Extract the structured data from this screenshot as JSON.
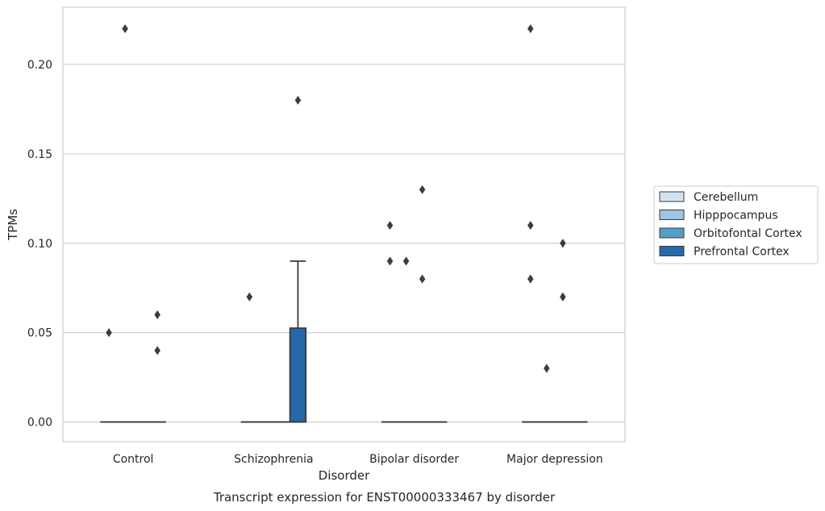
{
  "chart_data": {
    "type": "box",
    "xlabel": "Disorder",
    "ylabel": "TPMs",
    "caption": "Transcript expression for ENST00000333467 by disorder",
    "categories": [
      "Control",
      "Schizophrenia",
      "Bipolar disorder",
      "Major depression"
    ],
    "yticks": [
      "0.00",
      "0.05",
      "0.10",
      "0.15",
      "0.20"
    ],
    "ylim": [
      -0.011,
      0.232
    ],
    "grid": "horizontal",
    "legend_position": "right",
    "legend": [
      {
        "name": "Cerebellum",
        "color": "#d1e2f0"
      },
      {
        "name": "Hipppocampus",
        "color": "#9ac6df"
      },
      {
        "name": "Orbitofontal Cortex",
        "color": "#569fcb"
      },
      {
        "name": "Prefrontal Cortex",
        "color": "#2768a8"
      }
    ],
    "boxes": [
      {
        "category": "Control",
        "hue": "Cerebellum",
        "q1": 0.0,
        "median": 0.0,
        "q3": 0.0,
        "whislo": 0.0,
        "whishi": 0.0,
        "fliers": [
          0.05
        ]
      },
      {
        "category": "Control",
        "hue": "Hipppocampus",
        "q1": 0.0,
        "median": 0.0,
        "q3": 0.0,
        "whislo": 0.0,
        "whishi": 0.0,
        "fliers": [
          0.22
        ]
      },
      {
        "category": "Control",
        "hue": "Orbitofontal Cortex",
        "q1": 0.0,
        "median": 0.0,
        "q3": 0.0,
        "whislo": 0.0,
        "whishi": 0.0,
        "fliers": []
      },
      {
        "category": "Control",
        "hue": "Prefrontal Cortex",
        "q1": 0.0,
        "median": 0.0,
        "q3": 0.0,
        "whislo": 0.0,
        "whishi": 0.0,
        "fliers": [
          0.06,
          0.04
        ]
      },
      {
        "category": "Schizophrenia",
        "hue": "Cerebellum",
        "q1": 0.0,
        "median": 0.0,
        "q3": 0.0,
        "whislo": 0.0,
        "whishi": 0.0,
        "fliers": [
          0.07
        ]
      },
      {
        "category": "Schizophrenia",
        "hue": "Hipppocampus",
        "q1": 0.0,
        "median": 0.0,
        "q3": 0.0,
        "whislo": 0.0,
        "whishi": 0.0,
        "fliers": []
      },
      {
        "category": "Schizophrenia",
        "hue": "Orbitofontal Cortex",
        "q1": 0.0,
        "median": 0.0,
        "q3": 0.0,
        "whislo": 0.0,
        "whishi": 0.0,
        "fliers": []
      },
      {
        "category": "Schizophrenia",
        "hue": "Prefrontal Cortex",
        "q1": 0.0,
        "median": 0.0,
        "q3": 0.0525,
        "whislo": 0.0,
        "whishi": 0.09,
        "fliers": [
          0.18
        ]
      },
      {
        "category": "Bipolar disorder",
        "hue": "Cerebellum",
        "q1": 0.0,
        "median": 0.0,
        "q3": 0.0,
        "whislo": 0.0,
        "whishi": 0.0,
        "fliers": [
          0.11,
          0.09
        ]
      },
      {
        "category": "Bipolar disorder",
        "hue": "Hipppocampus",
        "q1": 0.0,
        "median": 0.0,
        "q3": 0.0,
        "whislo": 0.0,
        "whishi": 0.0,
        "fliers": [
          0.09
        ]
      },
      {
        "category": "Bipolar disorder",
        "hue": "Orbitofontal Cortex",
        "q1": 0.0,
        "median": 0.0,
        "q3": 0.0,
        "whislo": 0.0,
        "whishi": 0.0,
        "fliers": [
          0.13,
          0.08
        ]
      },
      {
        "category": "Bipolar disorder",
        "hue": "Prefrontal Cortex",
        "q1": 0.0,
        "median": 0.0,
        "q3": 0.0,
        "whislo": 0.0,
        "whishi": 0.0,
        "fliers": []
      },
      {
        "category": "Major depression",
        "hue": "Cerebellum",
        "q1": 0.0,
        "median": 0.0,
        "q3": 0.0,
        "whislo": 0.0,
        "whishi": 0.0,
        "fliers": [
          0.22,
          0.11,
          0.08
        ]
      },
      {
        "category": "Major depression",
        "hue": "Hipppocampus",
        "q1": 0.0,
        "median": 0.0,
        "q3": 0.0,
        "whislo": 0.0,
        "whishi": 0.0,
        "fliers": [
          0.03
        ]
      },
      {
        "category": "Major depression",
        "hue": "Orbitofontal Cortex",
        "q1": 0.0,
        "median": 0.0,
        "q3": 0.0,
        "whislo": 0.0,
        "whishi": 0.0,
        "fliers": [
          0.1,
          0.07
        ]
      },
      {
        "category": "Major depression",
        "hue": "Prefrontal Cortex",
        "q1": 0.0,
        "median": 0.0,
        "q3": 0.0,
        "whislo": 0.0,
        "whishi": 0.0,
        "fliers": []
      }
    ]
  }
}
